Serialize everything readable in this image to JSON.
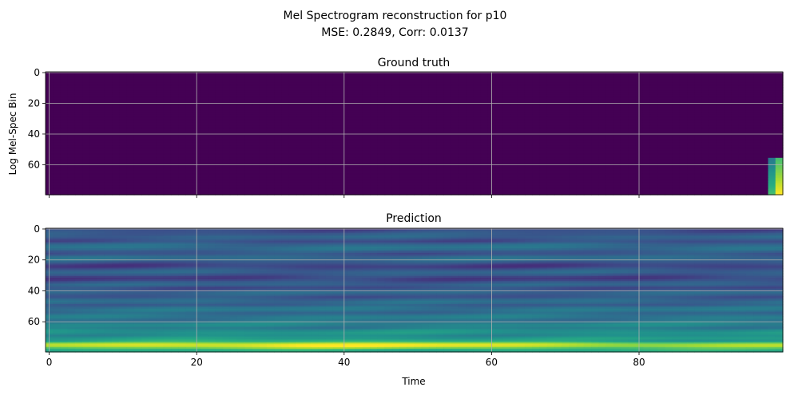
{
  "figure": {
    "title_line1": "Mel Spectrogram reconstruction for p10",
    "title_line2": "MSE: 0.2849, Corr: 0.0137"
  },
  "colors": {
    "background": "#ffffff",
    "viridis_low": "#440154",
    "viridis_high": "#fde725",
    "grid": "#b0b0b0"
  },
  "chart_data": [
    {
      "type": "heatmap",
      "title": "Ground truth",
      "xlabel": "",
      "ylabel": "Log Mel-Spec Bin",
      "xlim": [
        -0.5,
        99.5
      ],
      "ylim": [
        79.5,
        -0.5
      ],
      "x_ticks": [
        0,
        20,
        40,
        60,
        80
      ],
      "y_ticks": [
        0,
        20,
        40,
        60
      ],
      "x_tick_labels_visible": false,
      "grid": true,
      "n_time": 100,
      "n_bins": 80,
      "colormap": "viridis",
      "description_of_values": "uniform low value (0) everywhere except the last time frames (98-99) at bins 56-79, which rise to high values",
      "base_value": 0.0,
      "active_region": {
        "time_from": 98,
        "time_to": 99,
        "bin_from": 56,
        "bin_to": 79,
        "value_range": [
          0.4,
          1.0
        ]
      }
    },
    {
      "type": "heatmap",
      "title": "Prediction",
      "xlabel": "Time",
      "ylabel": "",
      "xlim": [
        -0.5,
        99.5
      ],
      "ylim": [
        79.5,
        -0.5
      ],
      "x_ticks": [
        0,
        20,
        40,
        60,
        80
      ],
      "y_ticks": [
        0,
        20,
        40,
        60
      ],
      "x_tick_labels_visible": true,
      "grid": true,
      "n_time": 100,
      "n_bins": 80,
      "colormap": "viridis",
      "bin_profile": [
        0.22,
        0.24,
        0.26,
        0.28,
        0.3,
        0.32,
        0.3,
        0.26,
        0.24,
        0.28,
        0.34,
        0.36,
        0.38,
        0.36,
        0.32,
        0.28,
        0.26,
        0.3,
        0.34,
        0.36,
        0.34,
        0.3,
        0.26,
        0.22,
        0.2,
        0.22,
        0.26,
        0.3,
        0.32,
        0.3,
        0.26,
        0.22,
        0.2,
        0.22,
        0.26,
        0.3,
        0.32,
        0.28,
        0.24,
        0.26,
        0.3,
        0.34,
        0.32,
        0.28,
        0.26,
        0.3,
        0.34,
        0.36,
        0.34,
        0.3,
        0.34,
        0.38,
        0.4,
        0.38,
        0.34,
        0.36,
        0.4,
        0.42,
        0.4,
        0.38,
        0.4,
        0.44,
        0.46,
        0.44,
        0.42,
        0.46,
        0.5,
        0.52,
        0.5,
        0.48,
        0.52,
        0.55,
        0.58,
        0.66,
        0.86,
        0.94,
        0.9,
        0.78,
        0.66,
        0.6
      ]
    }
  ]
}
